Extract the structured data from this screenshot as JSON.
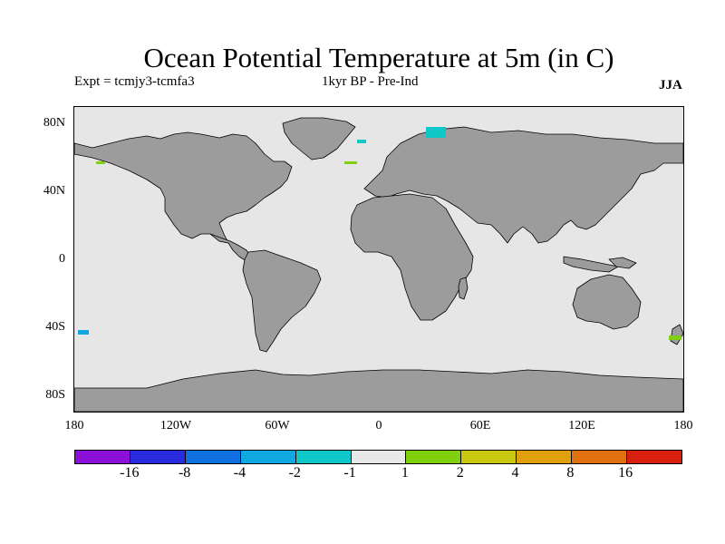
{
  "title": "Ocean Potential Temperature at 5m (in C)",
  "experiment": "Expt = tcmjy3-tcmfa3",
  "period": "1kyr BP - Pre-Ind",
  "season": "JJA",
  "y_axis_labels": [
    "80N",
    "40N",
    "0",
    "40S",
    "80S"
  ],
  "x_axis_labels": [
    "180",
    "120W",
    "60W",
    "0",
    "60E",
    "120E",
    "180"
  ],
  "colorbar": {
    "labels": [
      "-16",
      "-8",
      "-4",
      "-2",
      "-1",
      "1",
      "2",
      "4",
      "8",
      "16"
    ],
    "colors": [
      "#8a10d8",
      "#2a2adf",
      "#1070e0",
      "#10a8e0",
      "#10c8c8",
      "#e8e8e8",
      "#80d010",
      "#c8c810",
      "#e0a010",
      "#e07010",
      "#d82010"
    ]
  },
  "colors": {
    "ocean": "#e6e6e6",
    "land": "#9c9c9c",
    "coast": "#000000"
  }
}
